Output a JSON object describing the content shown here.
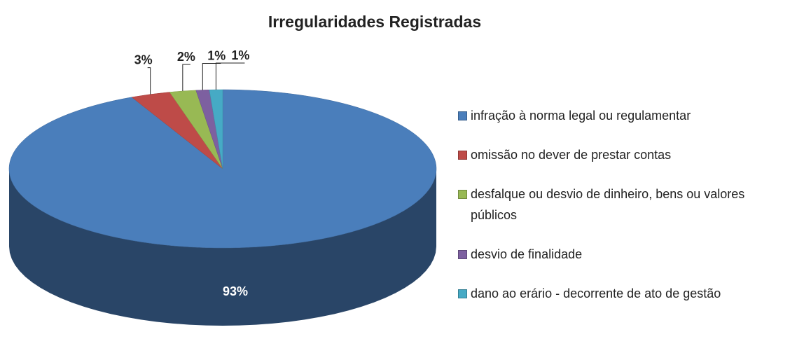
{
  "chart_data": {
    "type": "pie",
    "title": "Irregularidades Registradas",
    "categories": [
      "infração à norma legal ou regulamentar",
      "omissão no dever de prestar contas",
      "desfalque ou desvio de dinheiro, bens ou valores públicos",
      "desvio de finalidade",
      "dano ao erário - decorrente de ato de gestão"
    ],
    "values": [
      93,
      3,
      2,
      1,
      1
    ],
    "value_labels": [
      "93%",
      "3%",
      "2%",
      "1%",
      "1%"
    ],
    "colors": [
      "#4a7ebb",
      "#be4b48",
      "#98b954",
      "#7d60a0",
      "#46aac5"
    ],
    "legend": "right"
  }
}
